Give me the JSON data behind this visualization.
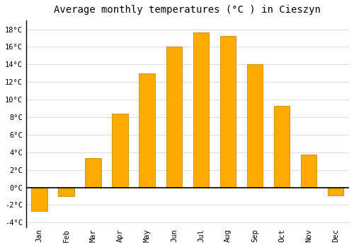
{
  "title": "Average monthly temperatures (°C ) in Cieszyn",
  "months": [
    "Jan",
    "Feb",
    "Mar",
    "Apr",
    "May",
    "Jun",
    "Jul",
    "Aug",
    "Sep",
    "Oct",
    "Nov",
    "Dec"
  ],
  "values": [
    -2.7,
    -1.0,
    3.3,
    8.4,
    13.0,
    16.0,
    17.6,
    17.2,
    14.0,
    9.3,
    3.7,
    -0.9
  ],
  "bar_color": "#FFAA00",
  "bar_edge_color": "#CC8800",
  "ylim": [
    -4.5,
    19
  ],
  "yticks": [
    -4,
    -2,
    0,
    2,
    4,
    6,
    8,
    10,
    12,
    14,
    16,
    18
  ],
  "background_color": "#FFFFFF",
  "plot_bg_color": "#FFFFFF",
  "grid_color": "#DDDDDD",
  "title_fontsize": 10,
  "tick_fontsize": 7.5,
  "bar_width": 0.6
}
